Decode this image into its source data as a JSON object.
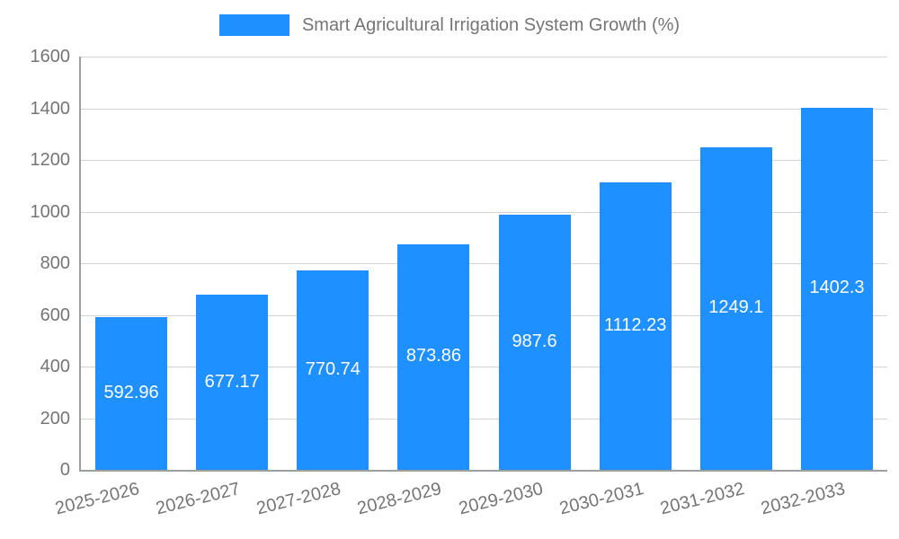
{
  "colors": {
    "bar": "#1e90ff",
    "grid": "#d3d3d3",
    "axis": "#9e9e9e",
    "tick_text": "#757575",
    "value_text": "#ffffff",
    "background": "#ffffff"
  },
  "chart_data": {
    "type": "bar",
    "title": "Smart Agricultural Irrigation System Growth (%)",
    "categories": [
      "2025-2026",
      "2026-2027",
      "2027-2028",
      "2028-2029",
      "2029-2030",
      "2030-2031",
      "2031-2032",
      "2032-2033"
    ],
    "values": [
      592.96,
      677.17,
      770.74,
      873.86,
      987.6,
      1112.23,
      1249.1,
      1402.3
    ],
    "value_labels": [
      "592.96",
      "677.17",
      "770.74",
      "873.86",
      "987.6",
      "1112.23",
      "1249.1",
      "1402.3"
    ],
    "xlabel": "",
    "ylabel": "",
    "ylim": [
      0,
      1600
    ],
    "ytick_step": 200,
    "grid": "horizontal",
    "legend_position": "top-center"
  }
}
